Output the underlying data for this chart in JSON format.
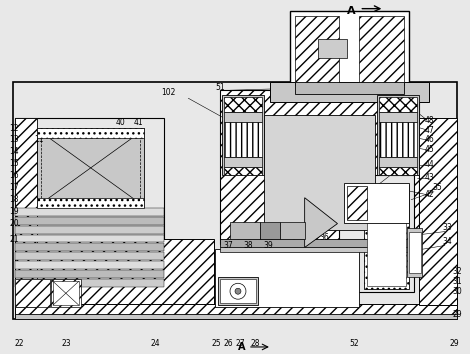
{
  "bg": "#e8e8e8",
  "white": "#ffffff",
  "gray1": "#c8c8c8",
  "gray2": "#aaaaaa",
  "gray3": "#888888",
  "black": "#000000",
  "lw_main": 1.0,
  "lw_med": 0.6,
  "lw_thin": 0.4,
  "label_fs": 5.5
}
